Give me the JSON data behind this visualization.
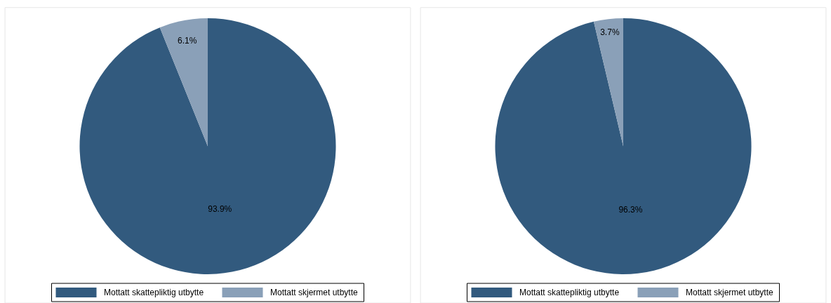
{
  "chart_data": [
    {
      "type": "pie",
      "categories": [
        "Mottatt skattepliktig utbytte",
        "Mottatt skjermet utbytte"
      ],
      "values": [
        93.9,
        6.1
      ],
      "colors": [
        "#325a7e",
        "#8aa0b8"
      ],
      "value_labels": [
        "93.9%",
        "6.1%"
      ],
      "legend": "bottom"
    },
    {
      "type": "pie",
      "categories": [
        "Mottatt skattepliktig utbytte",
        "Mottatt skjermet utbytte"
      ],
      "values": [
        96.3,
        3.7
      ],
      "colors": [
        "#325a7e",
        "#8aa0b8"
      ],
      "value_labels": [
        "96.3%",
        "3.7%"
      ],
      "legend": "bottom"
    }
  ]
}
